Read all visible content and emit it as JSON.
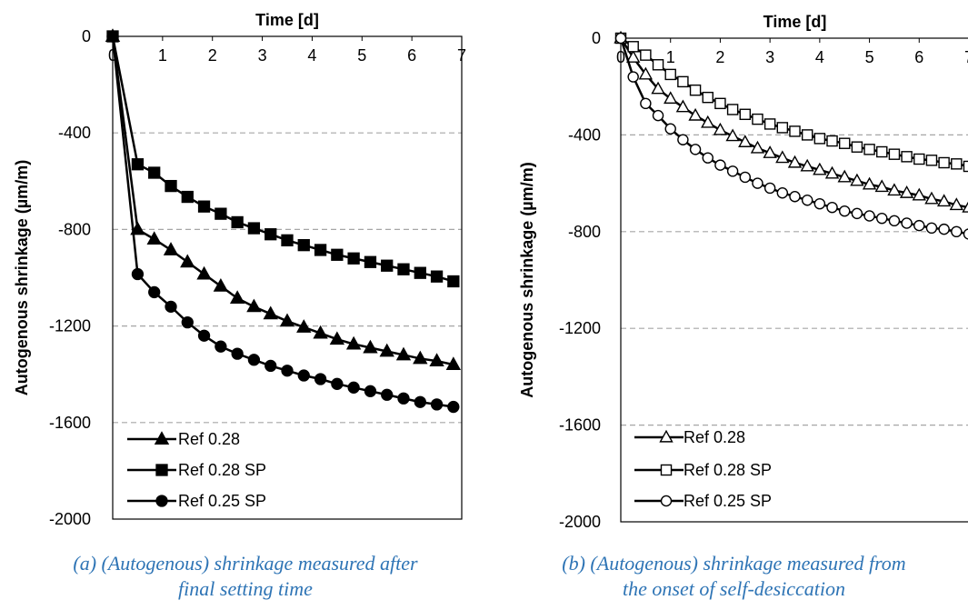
{
  "chart_data": [
    {
      "type": "line",
      "title": "Time [d]",
      "xlabel": "Time [d]",
      "ylabel": "Autogenous shrinkage (µm/m)",
      "xlim": [
        0,
        7
      ],
      "ylim": [
        -2000,
        0
      ],
      "x_ticks": [
        "0",
        "1",
        "2",
        "3",
        "4",
        "5",
        "6",
        "7"
      ],
      "y_ticks": [
        "0",
        "-400",
        "-800",
        "-1200",
        "-1600",
        "-2000"
      ],
      "grid": "horizontal dashed",
      "legend_position": "bottom-left",
      "series": [
        {
          "name": "Ref 0.28",
          "marker": "triangle-filled",
          "x": [
            0,
            0.5,
            0.833,
            1.167,
            1.5,
            1.833,
            2.167,
            2.5,
            2.833,
            3.167,
            3.5,
            3.833,
            4.167,
            4.5,
            4.833,
            5.167,
            5.5,
            5.833,
            6.167,
            6.5,
            6.833
          ],
          "values": [
            0,
            -800,
            -840,
            -885,
            -935,
            -985,
            -1035,
            -1085,
            -1120,
            -1150,
            -1180,
            -1205,
            -1230,
            -1255,
            -1275,
            -1290,
            -1305,
            -1320,
            -1335,
            -1345,
            -1360
          ]
        },
        {
          "name": "Ref 0.28 SP",
          "marker": "square-filled",
          "x": [
            0,
            0.5,
            0.833,
            1.167,
            1.5,
            1.833,
            2.167,
            2.5,
            2.833,
            3.167,
            3.5,
            3.833,
            4.167,
            4.5,
            4.833,
            5.167,
            5.5,
            5.833,
            6.167,
            6.5,
            6.833
          ],
          "values": [
            0,
            -530,
            -565,
            -620,
            -665,
            -705,
            -735,
            -770,
            -795,
            -820,
            -845,
            -865,
            -885,
            -905,
            -920,
            -935,
            -950,
            -965,
            -980,
            -995,
            -1015
          ]
        },
        {
          "name": "Ref 0.25 SP",
          "marker": "circle-filled",
          "x": [
            0,
            0.5,
            0.833,
            1.167,
            1.5,
            1.833,
            2.167,
            2.5,
            2.833,
            3.167,
            3.5,
            3.833,
            4.167,
            4.5,
            4.833,
            5.167,
            5.5,
            5.833,
            6.167,
            6.5,
            6.833
          ],
          "values": [
            0,
            -985,
            -1060,
            -1120,
            -1185,
            -1240,
            -1285,
            -1315,
            -1340,
            -1365,
            -1385,
            -1405,
            -1420,
            -1440,
            -1455,
            -1470,
            -1485,
            -1500,
            -1515,
            -1525,
            -1535
          ]
        }
      ]
    },
    {
      "type": "line",
      "title": "Time [d]",
      "xlabel": "Time [d]",
      "ylabel": "Autogenous shrinkage (µm/m)",
      "xlim": [
        0,
        7
      ],
      "ylim": [
        -2000,
        0
      ],
      "x_ticks": [
        "0",
        "1",
        "2",
        "3",
        "4",
        "5",
        "6",
        "7"
      ],
      "y_ticks": [
        "0",
        "-400",
        "-800",
        "-1200",
        "-1600",
        "-2000"
      ],
      "grid": "horizontal dashed",
      "legend_position": "bottom-left",
      "series": [
        {
          "name": "Ref 0.28",
          "marker": "triangle-open",
          "x": [
            0,
            0.25,
            0.5,
            0.75,
            1.0,
            1.25,
            1.5,
            1.75,
            2.0,
            2.25,
            2.5,
            2.75,
            3.0,
            3.25,
            3.5,
            3.75,
            4.0,
            4.25,
            4.5,
            4.75,
            5.0,
            5.25,
            5.5,
            5.75,
            6.0,
            6.25,
            6.5,
            6.75,
            7.0
          ],
          "values": [
            0,
            -80,
            -150,
            -210,
            -250,
            -285,
            -320,
            -350,
            -380,
            -405,
            -430,
            -455,
            -475,
            -495,
            -515,
            -530,
            -545,
            -560,
            -575,
            -590,
            -605,
            -615,
            -630,
            -640,
            -650,
            -665,
            -675,
            -690,
            -700
          ]
        },
        {
          "name": "Ref 0.28 SP",
          "marker": "square-open",
          "x": [
            0,
            0.25,
            0.5,
            0.75,
            1.0,
            1.25,
            1.5,
            1.75,
            2.0,
            2.25,
            2.5,
            2.75,
            3.0,
            3.25,
            3.5,
            3.75,
            4.0,
            4.25,
            4.5,
            4.75,
            5.0,
            5.25,
            5.5,
            5.75,
            6.0,
            6.25,
            6.5,
            6.75,
            7.0
          ],
          "values": [
            0,
            -35,
            -70,
            -110,
            -150,
            -180,
            -215,
            -245,
            -270,
            -295,
            -315,
            -335,
            -355,
            -370,
            -385,
            -400,
            -415,
            -425,
            -435,
            -450,
            -460,
            -470,
            -480,
            -490,
            -500,
            -505,
            -515,
            -520,
            -530
          ]
        },
        {
          "name": "Ref 0.25 SP",
          "marker": "circle-open",
          "x": [
            0,
            0.25,
            0.5,
            0.75,
            1.0,
            1.25,
            1.5,
            1.75,
            2.0,
            2.25,
            2.5,
            2.75,
            3.0,
            3.25,
            3.5,
            3.75,
            4.0,
            4.25,
            4.5,
            4.75,
            5.0,
            5.25,
            5.5,
            5.75,
            6.0,
            6.25,
            6.5,
            6.75,
            7.0
          ],
          "values": [
            0,
            -160,
            -270,
            -320,
            -375,
            -420,
            -460,
            -495,
            -525,
            -550,
            -575,
            -600,
            -620,
            -640,
            -655,
            -670,
            -685,
            -700,
            -715,
            -725,
            -735,
            -745,
            -755,
            -765,
            -775,
            -785,
            -790,
            -800,
            -810
          ]
        }
      ]
    }
  ],
  "captions": [
    {
      "line1": "(a) (Autogenous) shrinkage measured after",
      "line2": "final setting time"
    },
    {
      "line1": "(b) (Autogenous) shrinkage measured from",
      "line2": "the onset of self-desiccation"
    }
  ],
  "colors": {
    "line": "#000000",
    "grid": "#a6a6a6",
    "caption": "#2e74b5"
  }
}
